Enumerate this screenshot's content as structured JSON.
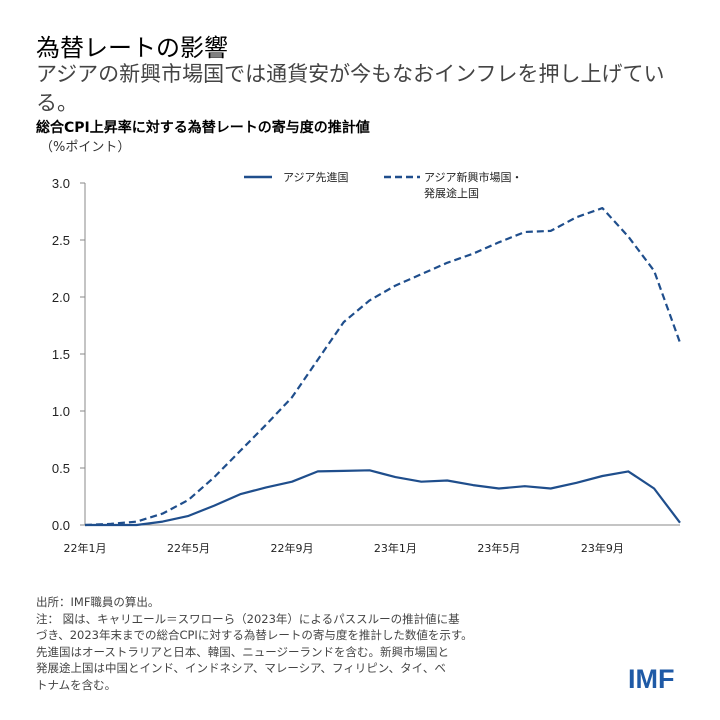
{
  "title": "為替レートの影響",
  "subtitle": "アジアの新興市場国では通貨安が今もなおインフレを押し上げている。",
  "notes": {
    "source": "出所：IMF職員の算出。",
    "note_lines": [
      "注： 図は、キャリエール＝スワローら（2023年）によるパススルーの推計値に基",
      "づき、2023年末までの総合CPIに対する為替レートの寄与度を推計した数値を示す。",
      "先進国はオーストラリアと日本、韓国、ニュージーランドを含む。新興市場国と",
      "発展途上国は中国とインド、インドネシア、マレーシア、フィリピン、タイ、ベ",
      "トナムを含む。"
    ]
  },
  "logo": "IMF",
  "chart_data": {
    "type": "line",
    "title": "総合CPI上昇率に対する為替レートの寄与度の推計値",
    "ylabel": "（%ポイント）",
    "ylim": [
      0,
      3.0
    ],
    "yticks": [
      "0.0",
      "0.5",
      "1.0",
      "1.5",
      "2.0",
      "2.5",
      "3.0"
    ],
    "x": [
      "22年1月",
      "22年2月",
      "22年3月",
      "22年4月",
      "22年5月",
      "22年6月",
      "22年7月",
      "22年8月",
      "22年9月",
      "22年10月",
      "22年11月",
      "22年12月",
      "23年1月",
      "23年2月",
      "23年3月",
      "23年4月",
      "23年5月",
      "23年6月",
      "23年7月",
      "23年8月",
      "23年9月",
      "23年10月",
      "23年11月",
      "23年12月"
    ],
    "xtick_labels": [
      "22年1月",
      "22年5月",
      "22年9月",
      "23年1月",
      "23年5月",
      "23年9月"
    ],
    "grid": false,
    "legend_position": "top",
    "color": "#1f4e8c",
    "series": [
      {
        "name": "アジア先進国",
        "style": "solid",
        "values": [
          0,
          0,
          0,
          0.03,
          0.08,
          0.17,
          0.27,
          0.33,
          0.38,
          0.47,
          0.475,
          0.48,
          0.42,
          0.38,
          0.39,
          0.35,
          0.32,
          0.34,
          0.32,
          0.37,
          0.43,
          0.47,
          0.32,
          0.02
        ]
      },
      {
        "name": "アジア新興市場国・発展途上国",
        "name_lines": [
          "アジア新興市場国・",
          "発展途上国"
        ],
        "style": "dashed",
        "values": [
          0,
          0.01,
          0.03,
          0.1,
          0.22,
          0.42,
          0.65,
          0.88,
          1.12,
          1.45,
          1.78,
          1.97,
          2.1,
          2.2,
          2.3,
          2.38,
          2.48,
          2.57,
          2.58,
          2.7,
          2.78,
          2.53,
          2.23,
          1.6
        ]
      }
    ]
  }
}
